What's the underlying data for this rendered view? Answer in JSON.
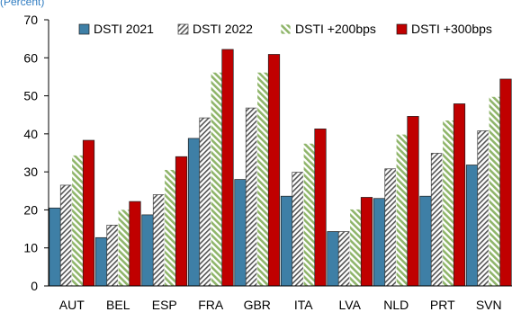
{
  "header_note": "(Percent)",
  "chart_data": {
    "type": "bar",
    "categories": [
      "AUT",
      "BEL",
      "ESP",
      "FRA",
      "GBR",
      "ITA",
      "LVA",
      "NLD",
      "PRT",
      "SVN"
    ],
    "series": [
      {
        "name": "DSTI 2021",
        "values": [
          20.5,
          12.7,
          18.7,
          38.8,
          28.0,
          23.6,
          14.3,
          23.0,
          23.6,
          31.8
        ],
        "color": "#3e7fa6",
        "pattern": "solid"
      },
      {
        "name": "DSTI 2022",
        "values": [
          26.5,
          16.0,
          24.0,
          44.2,
          46.8,
          29.9,
          14.3,
          30.8,
          34.9,
          40.8
        ],
        "color": "#555555",
        "pattern": "diagonal-hatch-dark"
      },
      {
        "name": "DSTI +200bps",
        "values": [
          34.4,
          20.1,
          30.6,
          56.2,
          56.2,
          37.5,
          20.2,
          39.9,
          43.6,
          49.8
        ],
        "color": "#8fb56a",
        "pattern": "diagonal-hatch-green"
      },
      {
        "name": "DSTI +300bps",
        "values": [
          38.3,
          22.2,
          34.0,
          62.2,
          60.9,
          41.3,
          23.3,
          44.6,
          47.9,
          54.4
        ],
        "color": "#c00000",
        "pattern": "solid"
      }
    ],
    "ylim": [
      0,
      70
    ],
    "yticks": [
      "0",
      "10",
      "20",
      "30",
      "40",
      "50",
      "60",
      "70"
    ],
    "grid": false,
    "legend_position": "top",
    "title": "",
    "xlabel": "",
    "ylabel": ""
  }
}
